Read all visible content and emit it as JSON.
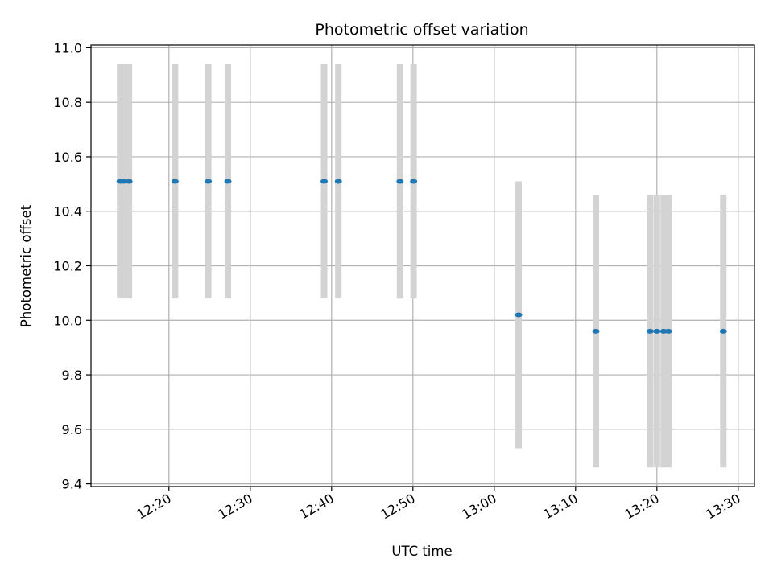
{
  "chart_data": {
    "type": "scatter",
    "title": "Photometric offset variation",
    "xlabel": "UTC time",
    "ylabel": "Photometric offset",
    "x_unit": "time",
    "xlim": [
      "12:10:25",
      "13:32:00"
    ],
    "ylim": [
      9.39,
      11.01
    ],
    "xticks": [
      "12:20",
      "12:30",
      "12:40",
      "12:50",
      "13:00",
      "13:10",
      "13:20",
      "13:30"
    ],
    "yticks": [
      9.4,
      9.6,
      9.8,
      10.0,
      10.2,
      10.4,
      10.6,
      10.8,
      11.0
    ],
    "ytick_labels": [
      "9.4",
      "9.6",
      "9.8",
      "10.0",
      "10.2",
      "10.4",
      "10.6",
      "10.8",
      "11.0"
    ],
    "grid": true,
    "marker_color": "#1f77b4",
    "errorbar_color": "#d3d3d3",
    "points": [
      {
        "time": "12:14:00",
        "value": 10.51,
        "error": 0.43
      },
      {
        "time": "12:14:25",
        "value": 10.51,
        "error": 0.43
      },
      {
        "time": "12:15:05",
        "value": 10.51,
        "error": 0.43
      },
      {
        "time": "12:20:45",
        "value": 10.51,
        "error": 0.43
      },
      {
        "time": "12:24:50",
        "value": 10.51,
        "error": 0.43
      },
      {
        "time": "12:27:15",
        "value": 10.51,
        "error": 0.43
      },
      {
        "time": "12:39:05",
        "value": 10.51,
        "error": 0.43
      },
      {
        "time": "12:40:50",
        "value": 10.51,
        "error": 0.43
      },
      {
        "time": "12:48:25",
        "value": 10.51,
        "error": 0.43
      },
      {
        "time": "12:50:05",
        "value": 10.51,
        "error": 0.43
      },
      {
        "time": "13:03:00",
        "value": 10.02,
        "error": 0.49
      },
      {
        "time": "13:12:30",
        "value": 9.96,
        "error": 0.5
      },
      {
        "time": "13:19:10",
        "value": 9.96,
        "error": 0.5
      },
      {
        "time": "13:20:00",
        "value": 9.96,
        "error": 0.5
      },
      {
        "time": "13:20:50",
        "value": 9.96,
        "error": 0.5
      },
      {
        "time": "13:21:25",
        "value": 9.96,
        "error": 0.5
      },
      {
        "time": "13:28:10",
        "value": 9.96,
        "error": 0.5
      }
    ]
  }
}
